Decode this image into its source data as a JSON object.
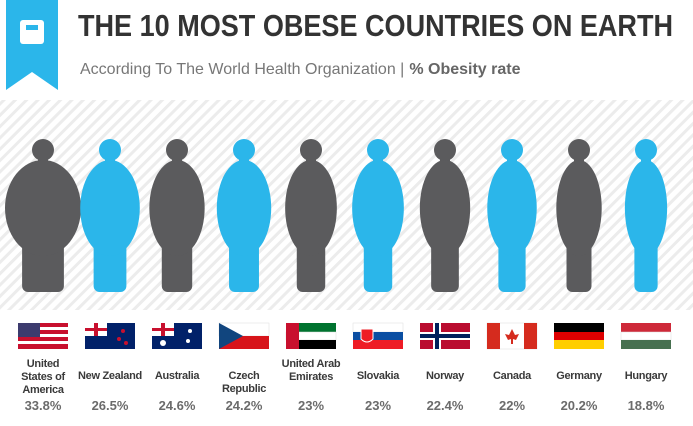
{
  "chart_data": {
    "type": "pictograph",
    "title": "THE 10 MOST OBESE COUNTRIES ON EARTH",
    "subtitle": "According To The World Health Organization |",
    "subtitle_emphasis": "% Obesity rate",
    "categories": [
      "United States of America",
      "New Zealand",
      "Australia",
      "Czech Republic",
      "United Arab Emirates",
      "Slovakia",
      "Norway",
      "Canada",
      "Germany",
      "Hungary"
    ],
    "values": [
      33.8,
      26.5,
      24.6,
      24.2,
      23,
      23,
      22.4,
      22,
      20.2,
      18.8
    ],
    "value_labels": [
      "33.8%",
      "26.5%",
      "24.6%",
      "24.2%",
      "23%",
      "23%",
      "22.4%",
      "22%",
      "20.2%",
      "18.8%"
    ],
    "colors": [
      "#5b5b5d",
      "#2bb6ea",
      "#5b5b5d",
      "#2bb6ea",
      "#5b5b5d",
      "#2bb6ea",
      "#5b5b5d",
      "#2bb6ea",
      "#5b5b5d",
      "#2bb6ea"
    ]
  }
}
